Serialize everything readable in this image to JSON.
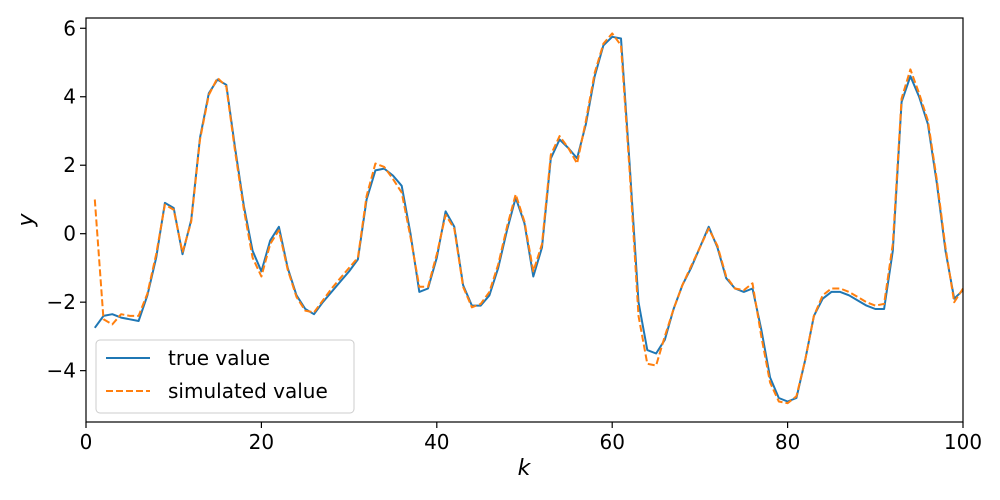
{
  "chart_data": {
    "type": "line",
    "xlabel": "k",
    "ylabel": "y",
    "xlim": [
      0,
      100
    ],
    "ylim": [
      -5.5,
      6.3
    ],
    "x_ticks": [
      0,
      20,
      40,
      60,
      80,
      100
    ],
    "y_ticks": [
      -4,
      -2,
      0,
      2,
      4,
      6
    ],
    "x_tick_labels": [
      "0",
      "20",
      "40",
      "60",
      "80",
      "100"
    ],
    "y_tick_labels": [
      "−4",
      "−2",
      "0",
      "2",
      "4",
      "6"
    ],
    "grid": false,
    "legend_position": "lower-left",
    "x": [
      1,
      2,
      3,
      4,
      5,
      6,
      7,
      8,
      9,
      10,
      11,
      12,
      13,
      14,
      15,
      16,
      17,
      18,
      19,
      20,
      21,
      22,
      23,
      24,
      25,
      26,
      27,
      28,
      29,
      30,
      31,
      32,
      33,
      34,
      35,
      36,
      37,
      38,
      39,
      40,
      41,
      42,
      43,
      44,
      45,
      46,
      47,
      48,
      49,
      50,
      51,
      52,
      53,
      54,
      55,
      56,
      57,
      58,
      59,
      60,
      61,
      62,
      63,
      64,
      65,
      66,
      67,
      68,
      69,
      70,
      71,
      72,
      73,
      74,
      75,
      76,
      77,
      78,
      79,
      80,
      81,
      82,
      83,
      84,
      85,
      86,
      87,
      88,
      89,
      90,
      91,
      92,
      93,
      94,
      95,
      96,
      97,
      98,
      99,
      100
    ],
    "series": [
      {
        "name": "true value",
        "color": "#1f77b4",
        "style": "solid",
        "values": [
          -2.75,
          -2.4,
          -2.35,
          -2.45,
          -2.5,
          -2.55,
          -1.8,
          -0.7,
          0.9,
          0.75,
          -0.6,
          0.4,
          2.8,
          4.1,
          4.5,
          4.35,
          2.5,
          0.8,
          -0.5,
          -1.1,
          -0.2,
          0.2,
          -1.0,
          -1.8,
          -2.2,
          -2.35,
          -2.0,
          -1.7,
          -1.4,
          -1.1,
          -0.75,
          1.0,
          1.85,
          1.9,
          1.7,
          1.4,
          0.0,
          -1.7,
          -1.6,
          -0.7,
          0.65,
          0.2,
          -1.5,
          -2.1,
          -2.1,
          -1.8,
          -1.0,
          0.1,
          1.05,
          0.3,
          -1.25,
          -0.4,
          2.2,
          2.75,
          2.5,
          2.2,
          3.2,
          4.6,
          5.5,
          5.75,
          5.7,
          2.0,
          -2.0,
          -3.4,
          -3.5,
          -3.1,
          -2.2,
          -1.5,
          -1.0,
          -0.4,
          0.2,
          -0.4,
          -1.3,
          -1.6,
          -1.7,
          -1.6,
          -2.8,
          -4.2,
          -4.8,
          -4.9,
          -4.8,
          -3.7,
          -2.4,
          -1.9,
          -1.7,
          -1.7,
          -1.8,
          -1.95,
          -2.1,
          -2.2,
          -2.2,
          -0.5,
          3.85,
          4.6,
          4.0,
          3.2,
          1.5,
          -0.5,
          -1.9,
          -1.65
        ]
      },
      {
        "name": "simulated value",
        "color": "#ff7f0e",
        "style": "dashed",
        "values": [
          1.0,
          -2.5,
          -2.65,
          -2.35,
          -2.4,
          -2.4,
          -1.75,
          -0.6,
          0.85,
          0.7,
          -0.55,
          0.35,
          2.75,
          4.05,
          4.55,
          4.3,
          2.4,
          0.7,
          -0.7,
          -1.25,
          -0.3,
          0.1,
          -1.05,
          -1.85,
          -2.25,
          -2.3,
          -1.95,
          -1.6,
          -1.3,
          -1.0,
          -0.7,
          1.1,
          2.05,
          1.95,
          1.6,
          1.2,
          -0.1,
          -1.55,
          -1.55,
          -0.6,
          0.55,
          0.15,
          -1.55,
          -2.15,
          -2.05,
          -1.7,
          -0.9,
          0.2,
          1.15,
          0.35,
          -1.1,
          -0.3,
          2.3,
          2.85,
          2.5,
          2.05,
          3.3,
          4.7,
          5.55,
          5.85,
          5.5,
          1.8,
          -2.4,
          -3.8,
          -3.85,
          -3.0,
          -2.2,
          -1.5,
          -0.95,
          -0.4,
          0.15,
          -0.35,
          -1.25,
          -1.6,
          -1.65,
          -1.45,
          -3.0,
          -4.35,
          -4.9,
          -4.95,
          -4.75,
          -3.7,
          -2.4,
          -1.8,
          -1.6,
          -1.6,
          -1.7,
          -1.85,
          -2.0,
          -2.1,
          -2.05,
          -0.3,
          3.95,
          4.8,
          4.1,
          3.3,
          1.6,
          -0.4,
          -2.0,
          -1.6
        ]
      }
    ]
  }
}
